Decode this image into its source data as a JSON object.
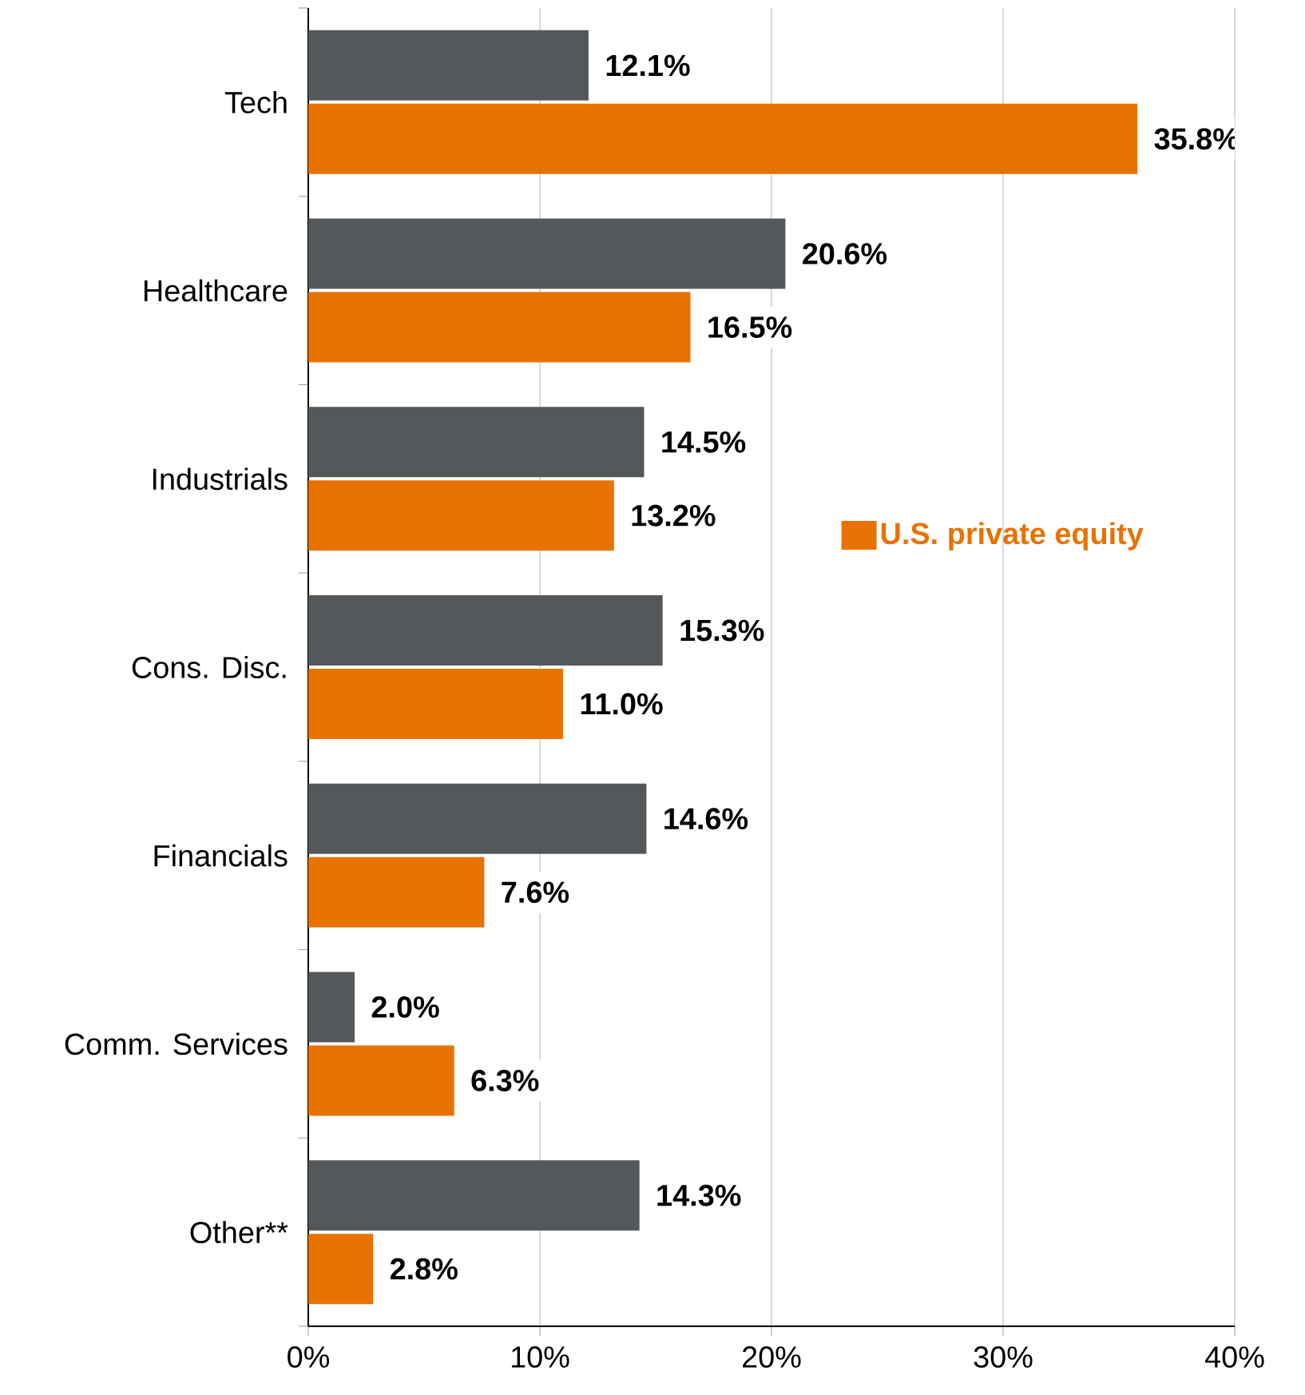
{
  "chart_data": {
    "type": "bar",
    "orientation": "horizontal",
    "categories": [
      "Tech",
      "Healthcare",
      "Industrials",
      "Cons. Disc.",
      "Financials",
      "Comm. Services",
      "Other**"
    ],
    "series": [
      {
        "color": "#55585a",
        "values": [
          12.1,
          20.6,
          14.5,
          15.3,
          14.6,
          2.0,
          14.3
        ],
        "value_labels": [
          "12.1%",
          "20.6%",
          "14.5%",
          "15.3%",
          "14.6%",
          "2.0%",
          "14.3%"
        ]
      },
      {
        "name": "U.S. private equity",
        "color": "#e87200",
        "values": [
          35.8,
          16.5,
          13.2,
          11.0,
          7.6,
          6.3,
          2.8
        ],
        "value_labels": [
          "35.8%",
          "16.5%",
          "13.2%",
          "11.0%",
          "7.6%",
          "6.3%",
          "2.8%"
        ]
      }
    ],
    "xlim": [
      0,
      40
    ],
    "xticks": [
      {
        "value": 0,
        "label": "0%"
      },
      {
        "value": 10,
        "label": "10%"
      },
      {
        "value": 20,
        "label": "20%"
      },
      {
        "value": 30,
        "label": "30%"
      },
      {
        "value": 40,
        "label": "40%"
      }
    ],
    "grid": "x",
    "legend": "right"
  }
}
